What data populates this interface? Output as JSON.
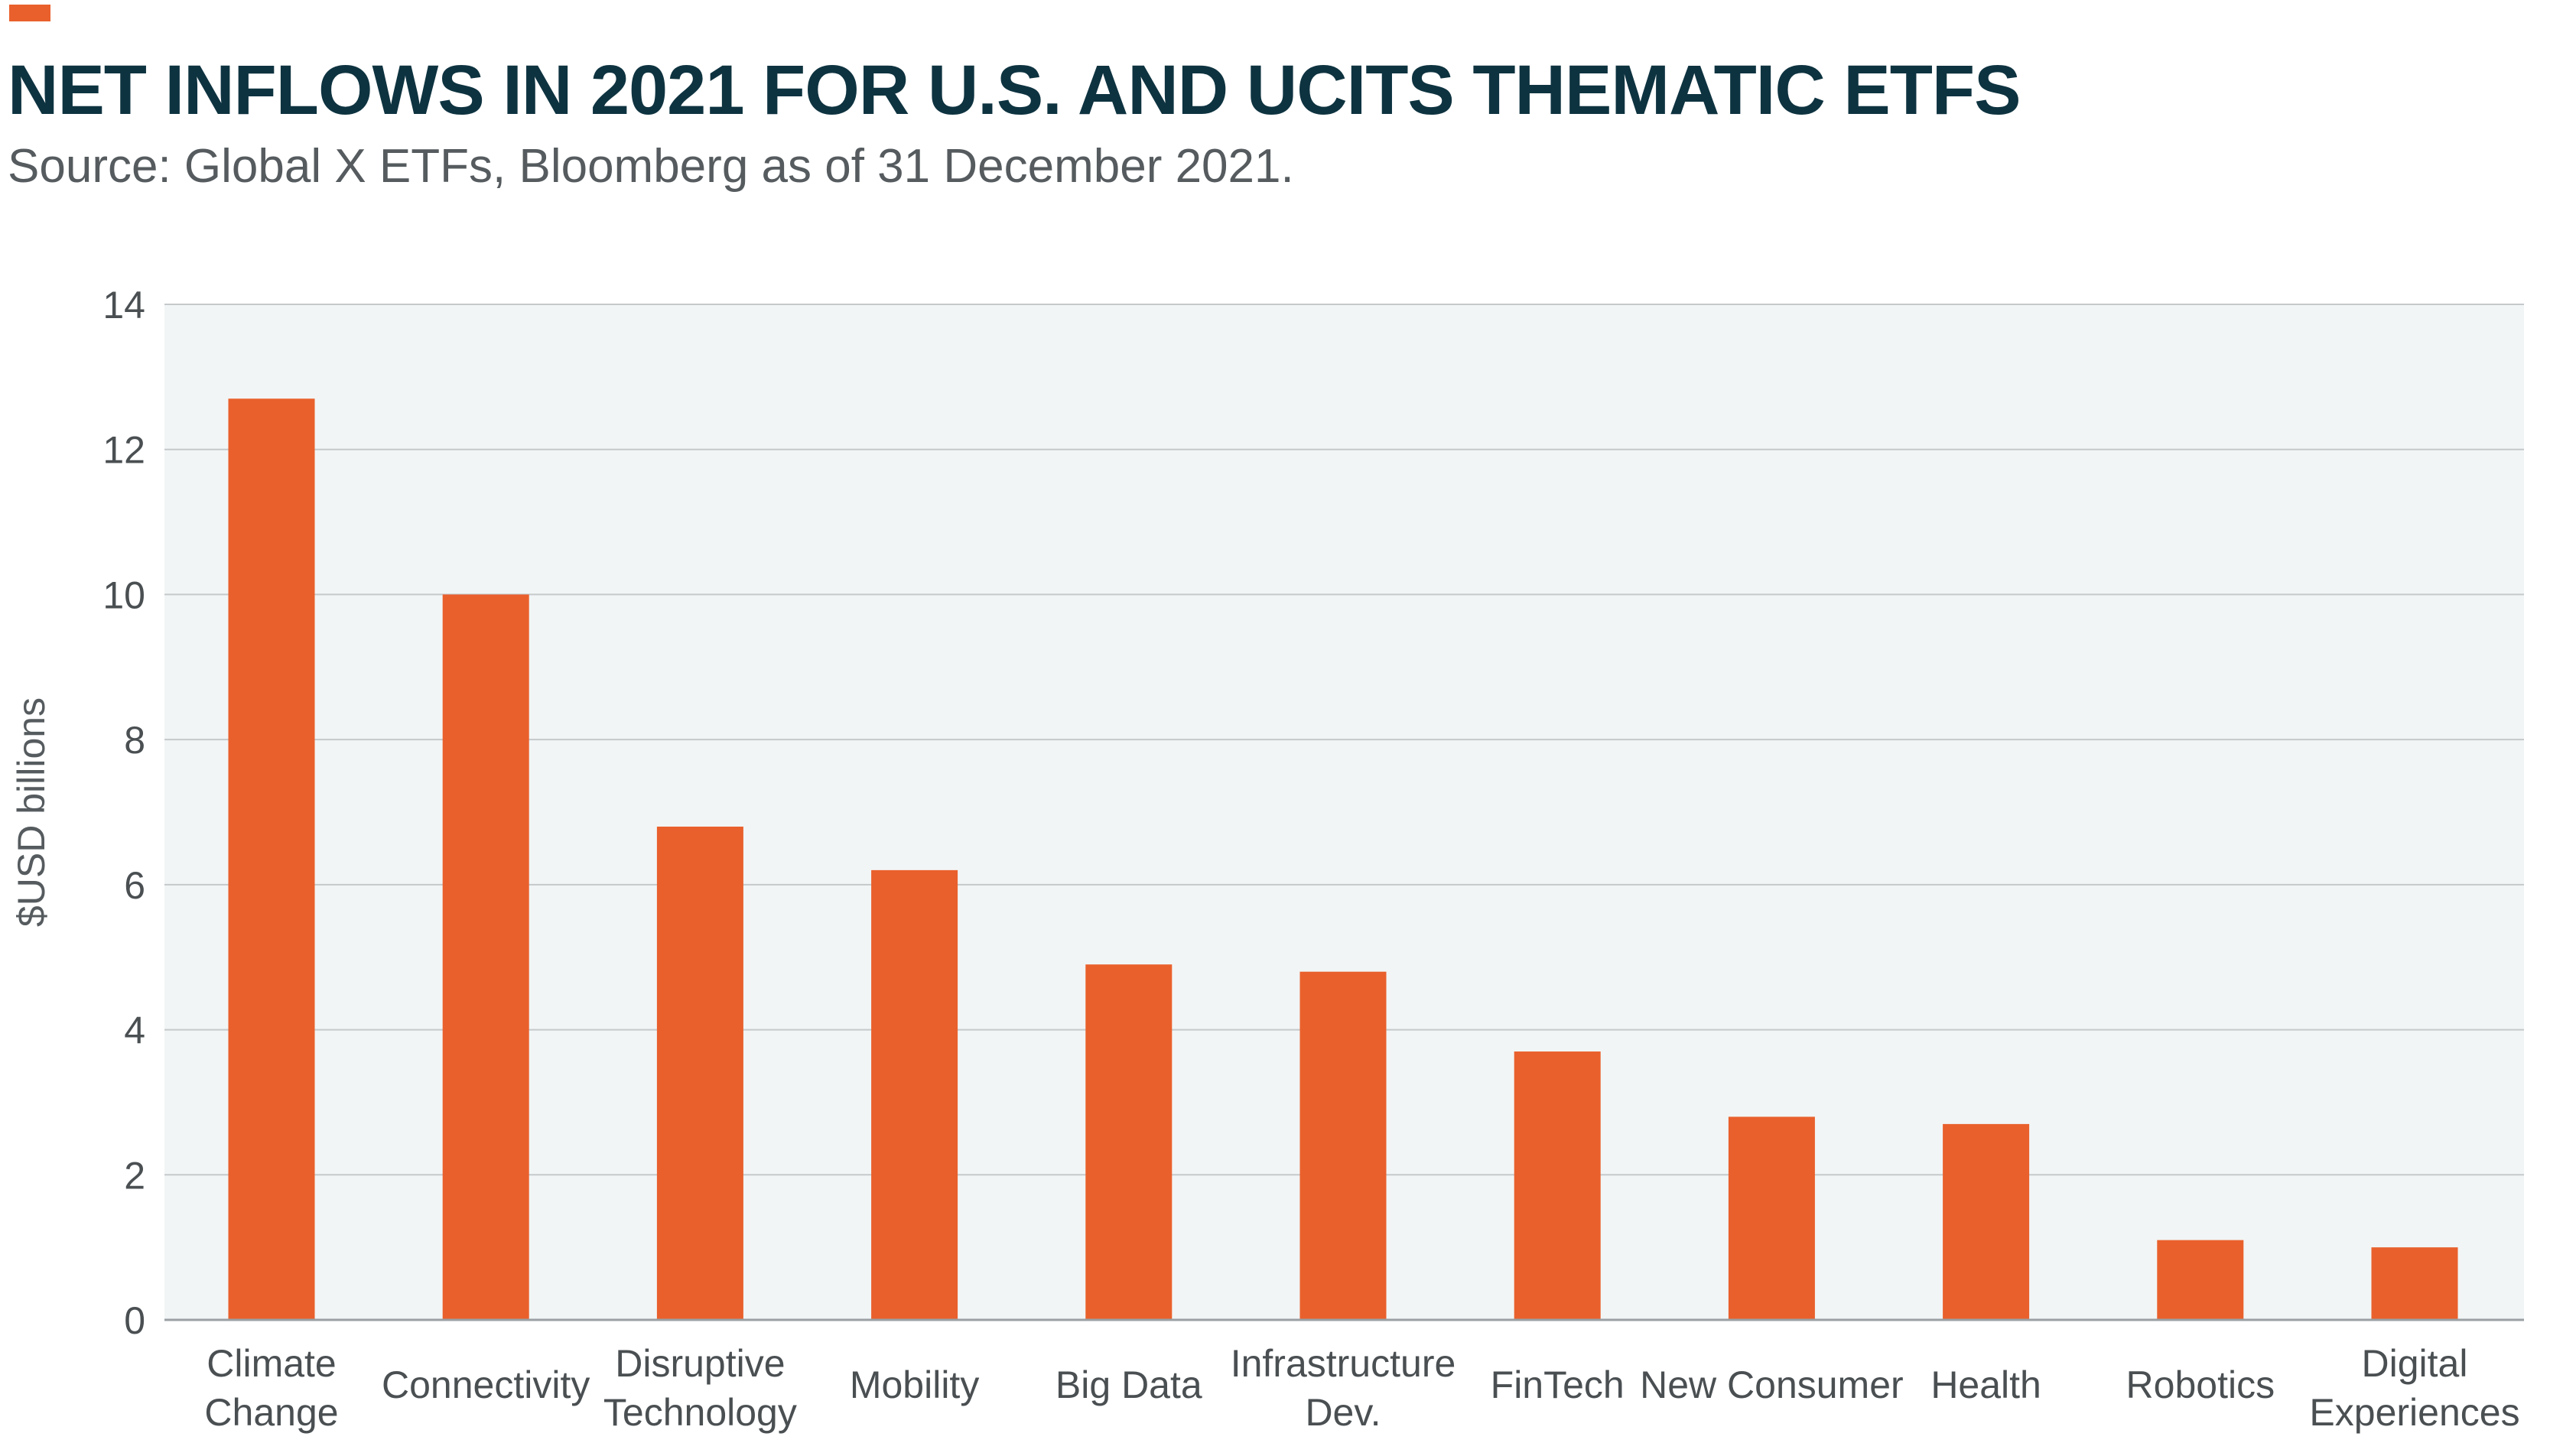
{
  "colors": {
    "accent": "#e9602c",
    "bar": "#e9602c",
    "title": "#0e3340",
    "plot_background": "#f2f5f5",
    "gridline": "#c5c9cb"
  },
  "header": {
    "title": "NET INFLOWS IN 2021 FOR U.S. AND UCITS THEMATIC ETFS",
    "subtitle": "Source: Global X ETFs, Bloomberg as of 31 December 2021."
  },
  "chart_data": {
    "type": "bar",
    "title": "NET INFLOWS IN 2021 FOR U.S. AND UCITS THEMATIC ETFS",
    "subtitle": "Source: Global X ETFs, Bloomberg as of 31 December 2021.",
    "xlabel": "",
    "ylabel": "$USD billions",
    "ylim": [
      0,
      14
    ],
    "yticks": [
      0,
      2,
      4,
      6,
      8,
      10,
      12,
      14
    ],
    "grid": true,
    "legend": "none",
    "categories": [
      [
        "Climate",
        "Change"
      ],
      [
        "Connectivity"
      ],
      [
        "Disruptive",
        "Technology"
      ],
      [
        "Mobility"
      ],
      [
        "Big Data"
      ],
      [
        "Infrastructure",
        "Dev."
      ],
      [
        "FinTech"
      ],
      [
        "New Consumer"
      ],
      [
        "Health"
      ],
      [
        "Robotics"
      ],
      [
        "Digital",
        "Experiences"
      ]
    ],
    "values": [
      12.7,
      10.0,
      6.8,
      6.2,
      4.9,
      4.8,
      3.7,
      2.8,
      2.7,
      1.1,
      1.0
    ]
  }
}
